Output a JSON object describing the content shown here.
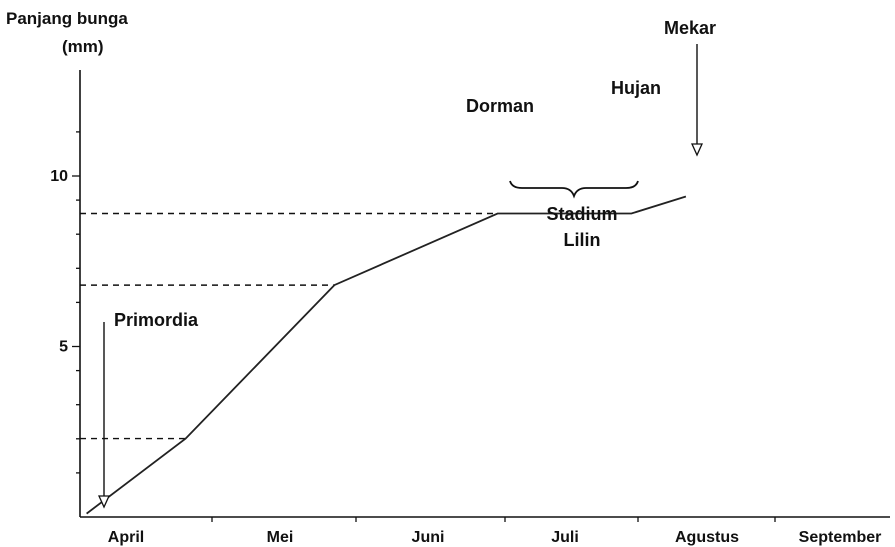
{
  "chart_data": {
    "type": "line",
    "ylabel_line1": "Panjang bunga",
    "ylabel_line2": "(mm)",
    "xlabel": "",
    "yticks": [
      5,
      10
    ],
    "ylim": [
      0,
      12.5
    ],
    "categories": [
      "April",
      "Mei",
      "Juni",
      "Juli",
      "Agustus",
      "September"
    ],
    "xlim": [
      0,
      6
    ],
    "grid": false,
    "points": [
      {
        "x": 0.05,
        "y": 0.1
      },
      {
        "x": 0.8,
        "y": 2.3
      },
      {
        "x": 1.85,
        "y": 6.8
      },
      {
        "x": 2.95,
        "y": 8.9
      },
      {
        "x": 3.95,
        "y": 8.9
      },
      {
        "x": 4.35,
        "y": 9.4
      }
    ],
    "reference_levels": [
      {
        "y": 8.9
      },
      {
        "y": 6.8
      },
      {
        "y": 2.3
      }
    ],
    "annotations": {
      "primordia": "Primordia",
      "dorman": "Dorman",
      "hujan": "Hujan",
      "mekar": "Mekar",
      "stadium_line1": "Stadium",
      "stadium_line2": "Lilin"
    }
  }
}
